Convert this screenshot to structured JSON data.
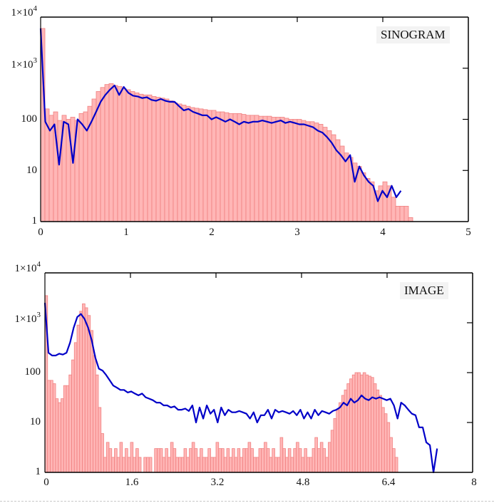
{
  "chart_data": [
    {
      "type": "bar",
      "title": "SINOGRAM",
      "xlabel": "",
      "ylabel": "",
      "xlim": [
        0,
        5
      ],
      "ylim": [
        1,
        10000
      ],
      "yscale": "log",
      "x_ticks": [
        "0",
        "1",
        "2",
        "3",
        "4",
        "5"
      ],
      "y_ticks": [
        "1",
        "10",
        "100",
        "1×10^3",
        "1×10^4"
      ],
      "grid": false,
      "legend": null,
      "annotation": "SINOGRAM",
      "bin_width": 0.05,
      "series": [
        {
          "name": "histogram",
          "style": "bars",
          "color": "#ffb6b6",
          "edge_color": "#f08080",
          "x_start": 0,
          "values": [
            6000,
            160,
            120,
            140,
            95,
            120,
            100,
            110,
            95,
            130,
            140,
            180,
            250,
            350,
            420,
            480,
            500,
            460,
            440,
            400,
            380,
            350,
            330,
            310,
            300,
            300,
            280,
            270,
            260,
            250,
            230,
            210,
            200,
            190,
            180,
            170,
            165,
            160,
            155,
            150,
            150,
            140,
            140,
            135,
            130,
            130,
            130,
            125,
            120,
            120,
            120,
            115,
            115,
            115,
            110,
            110,
            110,
            105,
            100,
            100,
            100,
            95,
            90,
            90,
            85,
            80,
            70,
            60,
            50,
            40,
            30,
            22,
            18,
            14,
            12,
            9,
            7,
            6,
            4,
            5,
            6,
            5,
            3,
            2,
            2,
            2,
            1.2
          ]
        },
        {
          "name": "curve",
          "style": "line",
          "color": "#0000c8",
          "x_start": 0,
          "values": [
            6000,
            90,
            60,
            80,
            13,
            90,
            80,
            14,
            100,
            80,
            60,
            90,
            140,
            220,
            300,
            380,
            460,
            300,
            430,
            330,
            290,
            280,
            260,
            270,
            240,
            230,
            250,
            230,
            220,
            220,
            180,
            150,
            160,
            140,
            130,
            120,
            120,
            100,
            110,
            100,
            90,
            100,
            90,
            80,
            90,
            85,
            90,
            90,
            95,
            90,
            85,
            90,
            95,
            85,
            90,
            85,
            80,
            80,
            75,
            70,
            60,
            55,
            45,
            35,
            25,
            20,
            15,
            20,
            6,
            12,
            8,
            6,
            5,
            2.5,
            4,
            3,
            5,
            3,
            4
          ]
        }
      ]
    },
    {
      "type": "bar",
      "title": "IMAGE",
      "xlabel": "",
      "ylabel": "",
      "xlim": [
        0,
        8
      ],
      "ylim": [
        1,
        10000
      ],
      "yscale": "log",
      "x_ticks": [
        "0",
        "1.6",
        "3.2",
        "4.8",
        "6.4",
        "8"
      ],
      "y_ticks": [
        "1",
        "10",
        "100",
        "1×10^3",
        "1×10^4"
      ],
      "grid": false,
      "legend": null,
      "annotation": "IMAGE",
      "bin_width": 0.05,
      "series": [
        {
          "name": "histogram",
          "style": "bars",
          "color": "#ffb6b6",
          "edge_color": "#f08080",
          "x_start": 0,
          "values": [
            3500,
            70,
            70,
            60,
            30,
            25,
            30,
            55,
            55,
            90,
            180,
            400,
            900,
            1700,
            2400,
            2000,
            1400,
            700,
            220,
            90,
            20,
            6,
            2,
            4,
            3,
            2,
            3,
            2,
            4,
            2,
            3,
            2,
            4,
            2,
            3,
            2,
            1,
            2,
            2,
            2,
            1,
            3,
            3,
            3,
            2,
            3,
            2,
            4,
            3,
            2,
            2,
            2,
            3,
            2,
            3,
            4,
            3,
            2,
            3,
            2,
            2,
            3,
            2,
            2,
            4,
            3,
            3,
            2,
            3,
            2,
            3,
            2,
            3,
            2,
            3,
            3,
            4,
            3,
            2,
            2,
            3,
            3,
            4,
            3,
            2,
            3,
            2,
            2,
            5,
            3,
            2,
            3,
            2,
            3,
            4,
            3,
            2,
            3,
            2,
            2,
            3,
            5,
            3,
            4,
            3,
            2,
            4,
            7,
            12,
            18,
            25,
            35,
            45,
            60,
            75,
            90,
            100,
            100,
            90,
            100,
            90,
            85,
            80,
            60,
            45,
            35,
            20,
            15,
            10,
            5,
            3,
            2
          ],
          "note": "bins cover 0 to ~7.0"
        },
        {
          "name": "curve",
          "style": "line",
          "color": "#0000c8",
          "x_start": 0,
          "values": [
            2500,
            250,
            220,
            220,
            240,
            230,
            250,
            400,
            800,
            1300,
            1500,
            1200,
            800,
            450,
            200,
            120,
            110,
            90,
            70,
            55,
            50,
            45,
            45,
            40,
            42,
            38,
            35,
            38,
            32,
            30,
            28,
            25,
            25,
            22,
            22,
            20,
            21,
            18,
            18,
            19,
            17,
            22,
            10,
            20,
            12,
            22,
            15,
            18,
            10,
            20,
            14,
            18,
            16,
            16,
            17,
            16,
            15,
            12,
            16,
            10,
            14,
            14,
            18,
            12,
            18,
            16,
            17,
            16,
            15,
            17,
            14,
            18,
            12,
            16,
            12,
            18,
            14,
            17,
            16,
            15,
            17,
            18,
            20,
            25,
            22,
            30,
            25,
            28,
            35,
            30,
            28,
            32,
            30,
            32,
            30,
            28,
            30,
            22,
            12,
            25,
            22,
            18,
            15,
            14,
            8,
            8,
            4,
            3.5,
            1,
            3
          ]
        }
      ]
    }
  ],
  "top_chart": {
    "label": "SINOGRAM",
    "y_labels": [
      {
        "base": "1×10",
        "exp": "4"
      },
      {
        "base": "1×10",
        "exp": "3"
      },
      {
        "base": "100",
        "exp": ""
      },
      {
        "base": "10",
        "exp": ""
      },
      {
        "base": "1",
        "exp": ""
      }
    ],
    "x_labels": [
      "0",
      "1",
      "2",
      "3",
      "4",
      "5"
    ]
  },
  "bottom_chart": {
    "label": "IMAGE",
    "y_labels": [
      {
        "base": "1×10",
        "exp": "4"
      },
      {
        "base": "1×10",
        "exp": "3"
      },
      {
        "base": "100",
        "exp": ""
      },
      {
        "base": "10",
        "exp": ""
      },
      {
        "base": "1",
        "exp": ""
      }
    ],
    "x_labels": [
      "0",
      "1.6",
      "3.2",
      "4.8",
      "6.4",
      "8"
    ]
  }
}
